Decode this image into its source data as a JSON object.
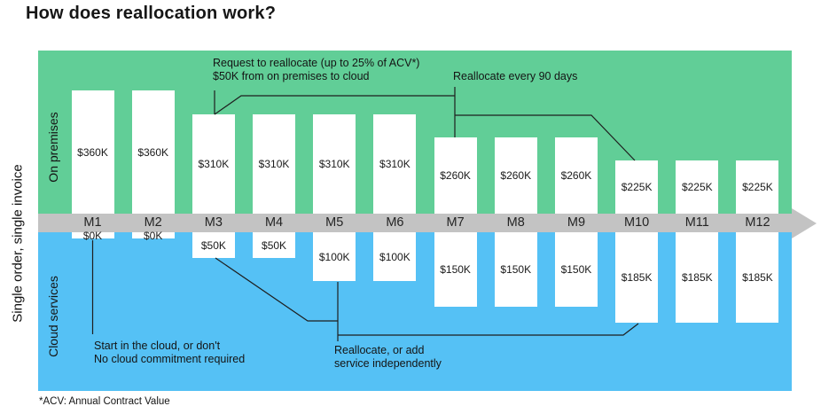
{
  "title": "How does reallocation work?",
  "side_labels": {
    "invoice": "Single order, single invoice",
    "on_premises": "On premises",
    "cloud_services": "Cloud services"
  },
  "months": [
    {
      "label": "M1",
      "on_premises": "$360K",
      "cloud": "$0K"
    },
    {
      "label": "M2",
      "on_premises": "$360K",
      "cloud": "$0K"
    },
    {
      "label": "M3",
      "on_premises": "$310K",
      "cloud": "$50K"
    },
    {
      "label": "M4",
      "on_premises": "$310K",
      "cloud": "$50K"
    },
    {
      "label": "M5",
      "on_premises": "$310K",
      "cloud": "$100K"
    },
    {
      "label": "M6",
      "on_premises": "$310K",
      "cloud": "$100K"
    },
    {
      "label": "M7",
      "on_premises": "$260K",
      "cloud": "$150K"
    },
    {
      "label": "M8",
      "on_premises": "$260K",
      "cloud": "$150K"
    },
    {
      "label": "M9",
      "on_premises": "$260K",
      "cloud": "$150K"
    },
    {
      "label": "M10",
      "on_premises": "$225K",
      "cloud": "$185K"
    },
    {
      "label": "M11",
      "on_premises": "$225K",
      "cloud": "$185K"
    },
    {
      "label": "M12",
      "on_premises": "$225K",
      "cloud": "$185K"
    }
  ],
  "annotations": {
    "request": "Request to reallocate (up to 25% of ACV*)\n$50K from on premises to cloud",
    "every90": "Reallocate every 90 days",
    "start": "Start in the cloud, or don't\nNo cloud commitment required",
    "independent": "Reallocate, or add\nservice independently"
  },
  "footnote": "*ACV: Annual Contract Value",
  "colors": {
    "on_premises_band": "#61ce97",
    "cloud_band": "#55c1f5",
    "timeline_band": "#c3c3c3",
    "bar": "#ffffff",
    "connector_line": "#1e1e1e",
    "text": "#1a1a1a"
  }
}
